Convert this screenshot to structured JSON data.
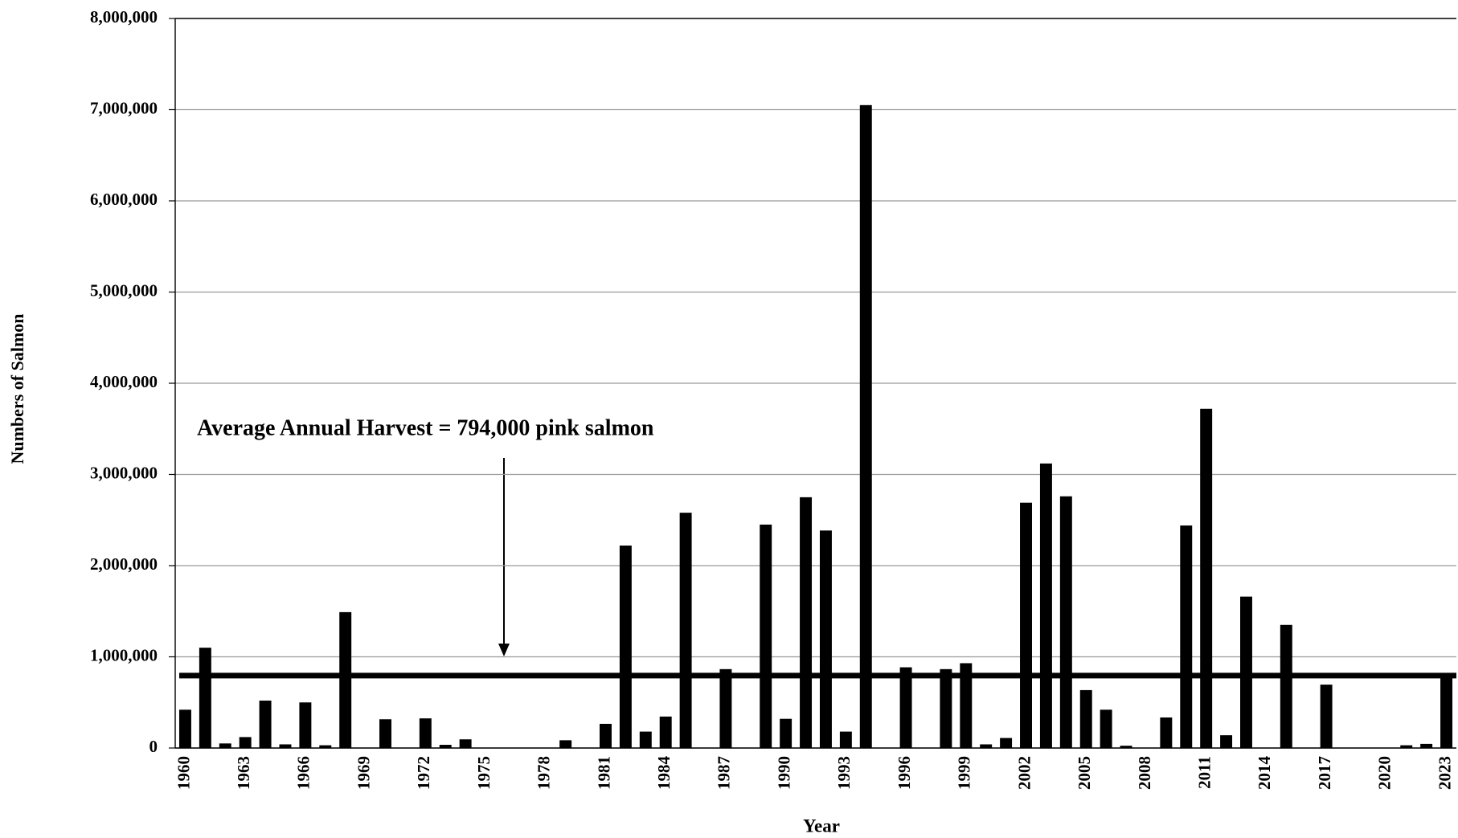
{
  "chart_data": {
    "type": "bar",
    "x_label": "Year",
    "y_label": "Numbers of Salmon",
    "annotation": "Average Annual Harvest = 794,000 pink salmon",
    "average": 794000,
    "categories": [
      "1960",
      null,
      null,
      "1963",
      null,
      null,
      "1966",
      null,
      null,
      "1969",
      null,
      null,
      "1972",
      null,
      null,
      "1975",
      null,
      null,
      "1978",
      null,
      null,
      "1981",
      null,
      null,
      "1984",
      null,
      null,
      "1987",
      null,
      null,
      "1990",
      null,
      null,
      "1993",
      null,
      null,
      "1996",
      null,
      null,
      "1999",
      null,
      null,
      "2002",
      null,
      null,
      "2005",
      null,
      null,
      "2008",
      null,
      null,
      "2011",
      null,
      null,
      "2014",
      null,
      null,
      "2017",
      null,
      null,
      "2020",
      null,
      null,
      "2023"
    ],
    "values": [
      420000,
      1100000,
      50000,
      120000,
      520000,
      40000,
      500000,
      30000,
      1490000,
      0,
      315000,
      0,
      325000,
      35000,
      95000,
      0,
      0,
      0,
      0,
      85000,
      0,
      265000,
      2220000,
      180000,
      345000,
      2580000,
      0,
      865000,
      0,
      2450000,
      320000,
      2750000,
      2385000,
      180000,
      7050000,
      0,
      885000,
      0,
      865000,
      930000,
      40000,
      110000,
      2690000,
      3120000,
      2760000,
      635000,
      420000,
      25000,
      0,
      335000,
      2440000,
      3720000,
      140000,
      1660000,
      0,
      1350000,
      0,
      695000,
      0,
      0,
      0,
      30000,
      45000,
      790000
    ],
    "color": "#000000",
    "ylim": [
      0,
      8000000
    ],
    "yticks": [
      0,
      {
        "value": 1000000,
        "label": "1,000,000"
      },
      {
        "value": 2000000,
        "label": "2,000,000"
      },
      {
        "value": 3000000,
        "label": "3,000,000"
      },
      {
        "value": 4000000,
        "label": "4,000,000"
      },
      {
        "value": 5000000,
        "label": "5,000,000"
      },
      {
        "value": 6000000,
        "label": "6,000,000"
      },
      {
        "value": 7000000,
        "label": "7,000,000"
      },
      {
        "value": 8000000,
        "label": "8,000,000"
      }
    ],
    "grid": true
  }
}
